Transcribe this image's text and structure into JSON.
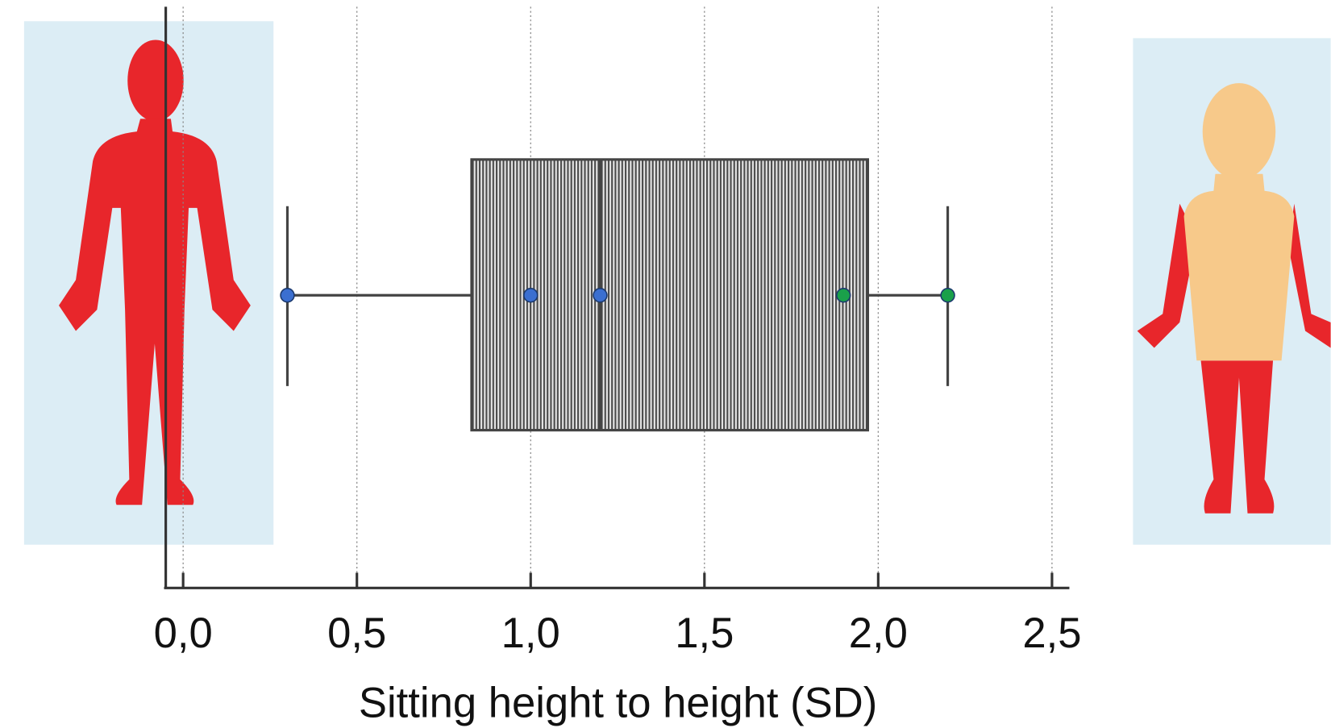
{
  "chart_data": {
    "type": "box",
    "xlabel": "Sitting height to height (SD)",
    "xlim": [
      -0.05,
      2.55
    ],
    "xticks": [
      {
        "value": 0,
        "label": "0,0"
      },
      {
        "value": 0.5,
        "label": "0,5"
      },
      {
        "value": 1,
        "label": "1,0"
      },
      {
        "value": 1.5,
        "label": "1,5"
      },
      {
        "value": 2,
        "label": "2,0"
      },
      {
        "value": 2.5,
        "label": "2,5"
      }
    ],
    "grid": true,
    "box": {
      "whislo": 0.3,
      "q1": 0.83,
      "med": 1.2,
      "q3": 1.97,
      "whishi": 2.2,
      "color": "#444444"
    },
    "points": {
      "values": [
        0.3,
        1.0,
        1.2,
        1.9,
        2.2
      ],
      "colors": [
        "#3b6fd0",
        "#3b6fd0",
        "#3b6fd0",
        "#1aa04a",
        "#1aa04a"
      ]
    }
  }
}
